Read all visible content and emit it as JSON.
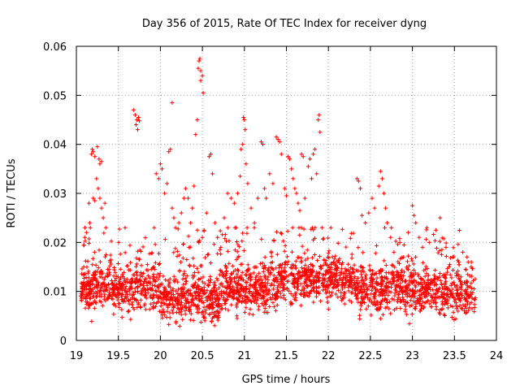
{
  "chart_data": {
    "type": "scatter",
    "title": "Day 356 of 2015, Rate Of TEC Index for receiver dyng",
    "xlabel": "GPS time / hours",
    "ylabel": "ROTI / TECUs",
    "xlim": [
      19,
      24
    ],
    "ylim": [
      0,
      0.06
    ],
    "x_ticks": [
      "19",
      "19.5",
      "20",
      "20.5",
      "21",
      "21.5",
      "22",
      "22.5",
      "23",
      "23.5",
      "24"
    ],
    "y_ticks": [
      "0",
      "0.01",
      "0.02",
      "0.03",
      "0.04",
      "0.05",
      "0.06"
    ],
    "grid": true,
    "marker": "+",
    "color": "#ff0000",
    "series": [
      {
        "name": "ROTI",
        "points": [
          [
            19.18,
            0.038
          ],
          [
            19.19,
            0.039
          ],
          [
            19.2,
            0.0385
          ],
          [
            19.22,
            0.0375
          ],
          [
            19.25,
            0.0395
          ],
          [
            19.27,
            0.037
          ],
          [
            19.28,
            0.036
          ],
          [
            19.3,
            0.0365
          ],
          [
            19.24,
            0.033
          ],
          [
            19.26,
            0.031
          ],
          [
            19.28,
            0.029
          ],
          [
            19.3,
            0.027
          ],
          [
            19.32,
            0.025
          ],
          [
            19.34,
            0.028
          ],
          [
            19.2,
            0.029
          ],
          [
            19.22,
            0.0285
          ],
          [
            19.15,
            0.028
          ],
          [
            19.12,
            0.022
          ],
          [
            19.1,
            0.021
          ],
          [
            19.16,
            0.024
          ],
          [
            19.68,
            0.047
          ],
          [
            19.7,
            0.046
          ],
          [
            19.72,
            0.045
          ],
          [
            19.74,
            0.0455
          ],
          [
            19.71,
            0.044
          ],
          [
            19.73,
            0.043
          ],
          [
            19.75,
            0.0448
          ],
          [
            19.95,
            0.034
          ],
          [
            19.98,
            0.033
          ],
          [
            20.0,
            0.036
          ],
          [
            20.02,
            0.035
          ],
          [
            20.05,
            0.03
          ],
          [
            20.08,
            0.032
          ],
          [
            20.1,
            0.0385
          ],
          [
            20.12,
            0.039
          ],
          [
            20.14,
            0.0485
          ],
          [
            20.14,
            0.027
          ],
          [
            20.16,
            0.025
          ],
          [
            20.18,
            0.023
          ],
          [
            20.22,
            0.024
          ],
          [
            20.25,
            0.026
          ],
          [
            20.28,
            0.029
          ],
          [
            20.3,
            0.031
          ],
          [
            20.33,
            0.029
          ],
          [
            20.36,
            0.024
          ],
          [
            20.38,
            0.027
          ],
          [
            20.4,
            0.0315
          ],
          [
            20.42,
            0.042
          ],
          [
            20.44,
            0.045
          ],
          [
            20.45,
            0.0555
          ],
          [
            20.46,
            0.057
          ],
          [
            20.47,
            0.0575
          ],
          [
            20.48,
            0.055
          ],
          [
            20.48,
            0.053
          ],
          [
            20.5,
            0.054
          ],
          [
            20.51,
            0.0505
          ],
          [
            20.44,
            0.0225
          ],
          [
            20.46,
            0.02
          ],
          [
            20.5,
            0.021
          ],
          [
            20.52,
            0.0225
          ],
          [
            20.55,
            0.026
          ],
          [
            20.58,
            0.0375
          ],
          [
            20.6,
            0.038
          ],
          [
            20.62,
            0.034
          ],
          [
            20.65,
            0.024
          ],
          [
            20.68,
            0.021
          ],
          [
            20.72,
            0.019
          ],
          [
            20.76,
            0.025
          ],
          [
            20.8,
            0.03
          ],
          [
            20.84,
            0.029
          ],
          [
            20.88,
            0.028
          ],
          [
            20.92,
            0.03
          ],
          [
            20.95,
            0.0335
          ],
          [
            20.96,
            0.039
          ],
          [
            20.98,
            0.04
          ],
          [
            20.99,
            0.0455
          ],
          [
            21.0,
            0.045
          ],
          [
            21.01,
            0.043
          ],
          [
            21.02,
            0.036
          ],
          [
            21.04,
            0.032
          ],
          [
            21.08,
            0.027
          ],
          [
            21.12,
            0.024
          ],
          [
            21.16,
            0.029
          ],
          [
            21.2,
            0.0405
          ],
          [
            21.22,
            0.04
          ],
          [
            21.24,
            0.031
          ],
          [
            21.26,
            0.029
          ],
          [
            21.3,
            0.034
          ],
          [
            21.34,
            0.032
          ],
          [
            21.38,
            0.0415
          ],
          [
            21.4,
            0.041
          ],
          [
            21.42,
            0.0405
          ],
          [
            21.44,
            0.038
          ],
          [
            21.48,
            0.031
          ],
          [
            21.5,
            0.0295
          ],
          [
            21.52,
            0.0375
          ],
          [
            21.54,
            0.037
          ],
          [
            21.56,
            0.035
          ],
          [
            21.58,
            0.033
          ],
          [
            21.6,
            0.031
          ],
          [
            21.62,
            0.03
          ],
          [
            21.64,
            0.028
          ],
          [
            21.66,
            0.0265
          ],
          [
            21.68,
            0.038
          ],
          [
            21.7,
            0.0375
          ],
          [
            21.72,
            0.029
          ],
          [
            21.76,
            0.0355
          ],
          [
            21.78,
            0.037
          ],
          [
            21.8,
            0.033
          ],
          [
            21.82,
            0.038
          ],
          [
            21.84,
            0.039
          ],
          [
            21.86,
            0.034
          ],
          [
            21.88,
            0.045
          ],
          [
            21.89,
            0.046
          ],
          [
            21.9,
            0.0425
          ],
          [
            22.34,
            0.033
          ],
          [
            22.36,
            0.0325
          ],
          [
            22.38,
            0.031
          ],
          [
            22.4,
            0.0255
          ],
          [
            22.44,
            0.024
          ],
          [
            22.48,
            0.026
          ],
          [
            22.52,
            0.029
          ],
          [
            22.55,
            0.027
          ],
          [
            22.6,
            0.0315
          ],
          [
            22.62,
            0.0345
          ],
          [
            22.64,
            0.033
          ],
          [
            22.66,
            0.03
          ],
          [
            22.68,
            0.027
          ],
          [
            22.7,
            0.024
          ],
          [
            22.74,
            0.021
          ],
          [
            22.78,
            0.018
          ],
          [
            22.85,
            0.02
          ],
          [
            22.95,
            0.022
          ],
          [
            23.0,
            0.0275
          ],
          [
            23.02,
            0.0255
          ],
          [
            23.04,
            0.024
          ],
          [
            23.08,
            0.021
          ],
          [
            23.12,
            0.019
          ],
          [
            23.2,
            0.02
          ],
          [
            23.28,
            0.0225
          ],
          [
            23.33,
            0.025
          ],
          [
            23.4,
            0.019
          ],
          [
            23.48,
            0.017
          ],
          [
            23.55,
            0.016
          ],
          [
            23.6,
            0.018
          ],
          [
            23.65,
            0.017
          ],
          [
            23.7,
            0.015
          ]
        ]
      }
    ]
  }
}
